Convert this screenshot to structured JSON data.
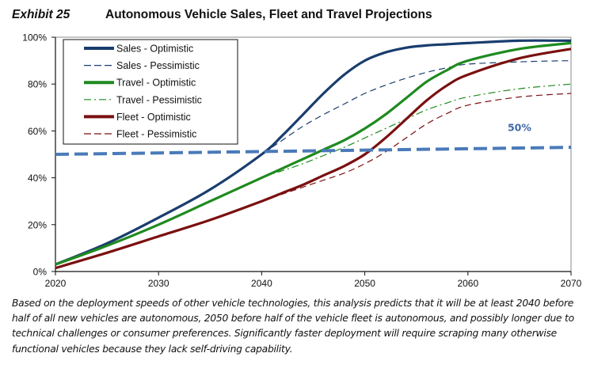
{
  "header": {
    "exhibit": "Exhibit 25",
    "title": "Autonomous Vehicle Sales, Fleet and Travel Projections"
  },
  "caption": "Based on the deployment speeds of other vehicle technologies, this analysis predicts that it will be at least 2040 before half of all new vehicles are autonomous, 2050 before half of the vehicle fleet is autonomous, and possibly longer due to technical challenges or consumer preferences. Significantly faster deployment will require scraping many otherwise functional vehicles because they lack self-driving capability.",
  "chart_data": {
    "type": "line",
    "title": "Autonomous Vehicle Sales, Fleet and Travel Projections",
    "xlabel": "",
    "ylabel": "",
    "xlim": [
      2020,
      2070
    ],
    "ylim": [
      0,
      100
    ],
    "x_ticks": [
      2020,
      2030,
      2040,
      2050,
      2060,
      2070
    ],
    "x_tick_labels": [
      "2020",
      "2030",
      "2040",
      "2050",
      "2060",
      "2070"
    ],
    "y_ticks": [
      0,
      20,
      40,
      60,
      80,
      100
    ],
    "y_tick_labels": [
      "0%",
      "20%",
      "40%",
      "60%",
      "80%",
      "100%"
    ],
    "grid": false,
    "legend_position": "top-left",
    "x": [
      2020,
      2025,
      2030,
      2035,
      2040,
      2042,
      2044,
      2046,
      2048,
      2050,
      2052,
      2054,
      2056,
      2058,
      2060,
      2065,
      2070
    ],
    "series": [
      {
        "name": "Sales - Optimistic",
        "color": "#1a3d6e",
        "style": "solid",
        "width": "thick",
        "values": [
          3,
          12,
          23,
          35,
          50,
          58,
          67,
          76,
          84,
          90,
          93.5,
          95.5,
          96.5,
          97,
          97.5,
          98.5,
          98.5
        ]
      },
      {
        "name": "Sales - Pessimistic",
        "color": "#1a3d6e",
        "style": "dashed",
        "width": "thin",
        "values": [
          3,
          12,
          23,
          35,
          50,
          56,
          62,
          67,
          71.5,
          76,
          79.5,
          82.5,
          85,
          87,
          88.5,
          89.5,
          90
        ]
      },
      {
        "name": "Travel - Optimistic",
        "color": "#1f8a1f",
        "style": "solid",
        "width": "thick",
        "values": [
          3,
          11,
          20,
          30,
          40,
          44,
          48,
          52,
          56,
          61,
          67,
          74,
          81,
          86,
          90,
          95,
          97.5
        ]
      },
      {
        "name": "Travel - Pessimistic",
        "color": "#1f8a1f",
        "style": "dashdot",
        "width": "thin",
        "values": [
          3,
          11,
          20,
          30,
          40,
          43,
          46,
          49.5,
          53,
          57,
          61,
          65,
          69,
          72,
          74.5,
          78,
          80
        ]
      },
      {
        "name": "Fleet - Optimistic",
        "color": "#7a1010",
        "style": "solid",
        "width": "thick",
        "values": [
          1.5,
          8,
          15,
          22,
          30,
          33.5,
          37,
          41,
          45,
          50,
          57,
          65,
          73,
          79.5,
          84,
          91,
          95
        ]
      },
      {
        "name": "Fleet - Pessimistic",
        "color": "#7a1010",
        "style": "dashed",
        "width": "thin",
        "values": [
          1.5,
          8,
          15,
          22,
          30,
          33,
          36,
          39,
          42,
          46,
          51,
          57,
          63,
          67.5,
          71,
          74.5,
          76
        ]
      }
    ],
    "reference_line": {
      "label": "50%",
      "color": "#4a7ab9",
      "style": "dashed",
      "x": [
        2020,
        2070
      ],
      "values": [
        50,
        53
      ]
    }
  }
}
